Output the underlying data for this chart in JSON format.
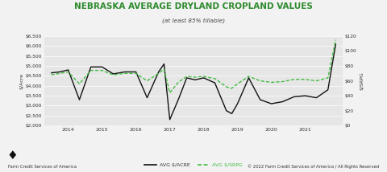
{
  "title": "NEBRASKA AVERAGE DRYLAND CROPLAND VALUES",
  "subtitle": "(at least 85% tillable)",
  "ylabel_left": "$/Acre",
  "ylabel_right": "$/SRPG",
  "legend_line1": "AVG $/ACRE",
  "legend_line2": "AVG $/SRPG",
  "footer_left": "Farm Credit Services of America",
  "footer_right": "© 2022 Farm Credit Services of America / All Rights Reserved",
  "bg_color": "#f2f2f2",
  "plot_bg_color": "#e6e6e6",
  "title_color": "#2d8a2d",
  "line1_color": "#111111",
  "line2_color": "#44bb44",
  "x_labels": [
    "2014",
    "2015",
    "2016",
    "2017",
    "2018",
    "2019",
    "2020",
    "2021"
  ],
  "x_tick_positions": [
    2014,
    2015,
    2016,
    2017,
    2018,
    2019,
    2020,
    2021
  ],
  "ylim_left": [
    2000,
    6500
  ],
  "ylim_right": [
    0,
    120
  ],
  "yticks_left": [
    2000,
    2500,
    3000,
    3500,
    4000,
    4500,
    5000,
    5500,
    6000,
    6500
  ],
  "yticks_right": [
    0,
    20,
    40,
    60,
    80,
    100,
    120
  ],
  "x_acre": [
    2013.5,
    2013.75,
    2014.0,
    2014.33,
    2014.67,
    2015.0,
    2015.33,
    2015.67,
    2016.0,
    2016.33,
    2016.67,
    2016.83,
    2017.0,
    2017.25,
    2017.5,
    2017.75,
    2018.0,
    2018.33,
    2018.67,
    2018.83,
    2019.0,
    2019.33,
    2019.67,
    2020.0,
    2020.33,
    2020.67,
    2021.0,
    2021.33,
    2021.67,
    2021.9
  ],
  "acre_values": [
    4650,
    4700,
    4800,
    3300,
    4950,
    4950,
    4600,
    4700,
    4700,
    3400,
    4700,
    5100,
    2300,
    3300,
    4400,
    4300,
    4400,
    4150,
    2750,
    2600,
    3100,
    4400,
    3300,
    3100,
    3200,
    3450,
    3500,
    3400,
    3800,
    6100
  ],
  "x_srpg": [
    2013.5,
    2013.75,
    2014.0,
    2014.33,
    2014.67,
    2015.0,
    2015.33,
    2015.67,
    2016.0,
    2016.33,
    2016.67,
    2016.83,
    2017.0,
    2017.25,
    2017.5,
    2017.75,
    2018.0,
    2018.33,
    2018.67,
    2018.83,
    2019.0,
    2019.33,
    2019.67,
    2020.0,
    2020.33,
    2020.67,
    2021.0,
    2021.33,
    2021.67,
    2021.9
  ],
  "srpg_values": [
    68,
    70,
    72,
    56,
    74,
    74,
    68,
    70,
    70,
    60,
    70,
    76,
    44,
    58,
    66,
    65,
    66,
    63,
    52,
    50,
    56,
    66,
    60,
    58,
    59,
    62,
    62,
    60,
    64,
    115
  ]
}
